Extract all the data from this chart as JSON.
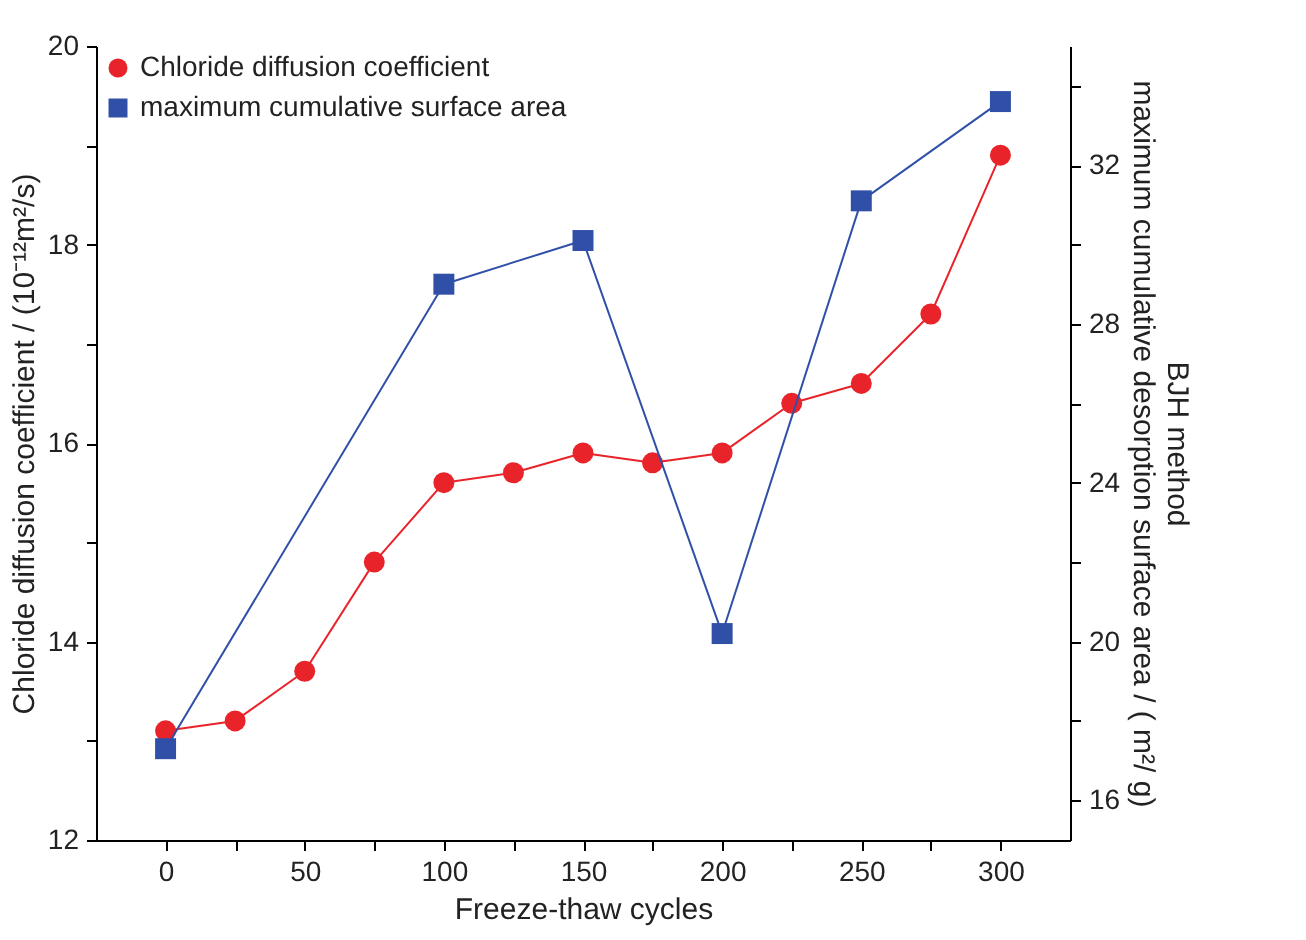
{
  "chart_data": {
    "type": "line",
    "xlabel": "Freeze-thaw cycles",
    "ylabel": "Chloride diffusion coefficient / (10⁻¹²m²/s)",
    "y2label": "BJH method\nmaximum cumulative desorption surface area /  ( m²/ g)",
    "xlim": [
      -25,
      325
    ],
    "xticks": [
      0,
      {
        "value": 25,
        "label": null
      },
      50,
      {
        "value": 75,
        "label": null
      },
      100,
      {
        "value": 125,
        "label": null
      },
      150,
      {
        "value": 175,
        "label": null
      },
      200,
      {
        "value": 225,
        "label": null
      },
      250,
      {
        "value": 275,
        "label": null
      },
      300
    ],
    "ylim": [
      12,
      20
    ],
    "yticks": [
      12,
      {
        "value": 13,
        "label": null
      },
      14,
      {
        "value": 15,
        "label": null
      },
      16,
      {
        "value": 17,
        "label": null
      },
      18,
      {
        "value": 19,
        "label": null
      },
      20
    ],
    "y2lim": [
      15,
      35
    ],
    "y2ticks": [
      16,
      {
        "value": 18,
        "label": null
      },
      20,
      {
        "value": 22,
        "label": null
      },
      24,
      {
        "value": 26,
        "label": null
      },
      28,
      {
        "value": 30,
        "label": null
      },
      32,
      {
        "value": 34,
        "label": null
      }
    ],
    "legend": "top left",
    "grid": false,
    "series": [
      {
        "name": "Chloride diffusion coefficient",
        "color": "#e8242a",
        "marker": "circle",
        "x": [
          0,
          25,
          50,
          75,
          100,
          125,
          150,
          175,
          200,
          225,
          250,
          275,
          300
        ],
        "values": [
          13.1,
          13.2,
          13.7,
          14.8,
          15.6,
          15.7,
          15.9,
          15.8,
          15.9,
          16.4,
          16.6,
          17.3,
          18.9
        ]
      },
      {
        "name": "maximum cumulative  surface area",
        "color": "#3050a8",
        "marker": "square",
        "axis": "y2",
        "x": [
          0,
          100,
          150,
          200,
          250,
          300
        ],
        "values": [
          17.3,
          29.0,
          30.1,
          20.2,
          31.1,
          33.6
        ]
      }
    ]
  }
}
